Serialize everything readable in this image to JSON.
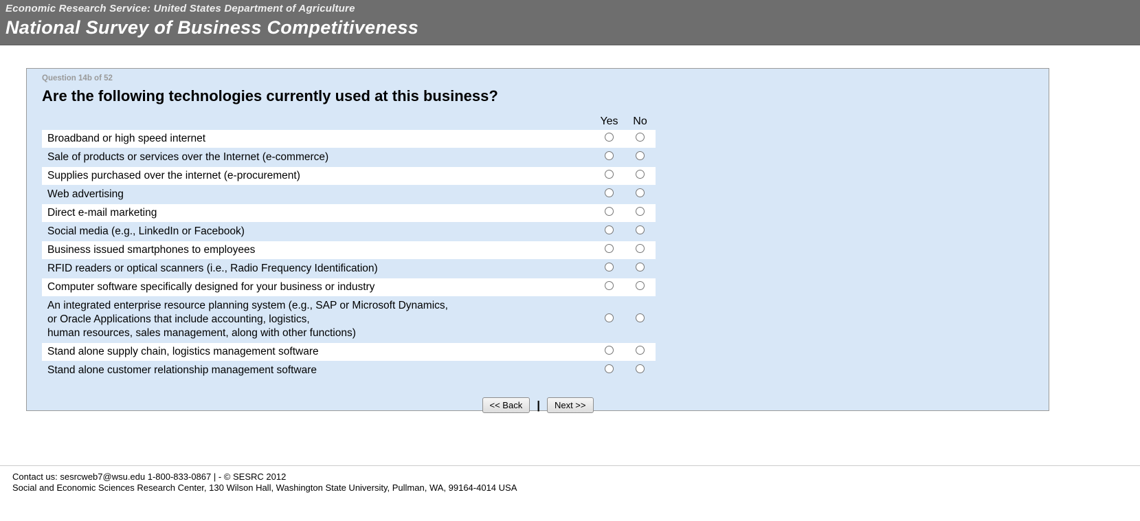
{
  "header": {
    "agency_line": "Economic Research Service: United States Department of Agriculture",
    "survey_title": "National Survey of Business Competitiveness"
  },
  "question": {
    "progress": "Question 14b of 52",
    "heading": "Are the following technologies currently used at this business?",
    "columns": {
      "yes": "Yes",
      "no": "No"
    },
    "rows": [
      {
        "label": "Broadband or high speed internet"
      },
      {
        "label": "Sale of products or services over the Internet (e-commerce)"
      },
      {
        "label": "Supplies purchased over the internet (e-procurement)"
      },
      {
        "label": "Web advertising"
      },
      {
        "label": "Direct e-mail marketing"
      },
      {
        "label": "Social media (e.g., LinkedIn or Facebook)"
      },
      {
        "label": "Business issued smartphones to employees"
      },
      {
        "label": "RFID readers or optical scanners (i.e., Radio Frequency Identification)"
      },
      {
        "label": "Computer software specifically designed for your business or industry"
      },
      {
        "label": "An integrated enterprise resource planning system (e.g., SAP or Microsoft Dynamics,\nor Oracle Applications that include accounting, logistics,\nhuman resources, sales management, along with other functions)"
      },
      {
        "label": "Stand alone supply chain, logistics management software"
      },
      {
        "label": "Stand alone customer relationship management software"
      }
    ]
  },
  "buttons": {
    "back": "<< Back",
    "separator": "|",
    "next": "Next >>"
  },
  "footer": {
    "line1": "Contact us: sesrcweb7@wsu.edu 1-800-833-0867 | - © SESRC 2012",
    "line2": "Social and Economic Sciences Research Center, 130 Wilson Hall, Washington State University, Pullman, WA, 99164-4014 USA"
  },
  "colors": {
    "header_bg": "#6e6e6e",
    "panel_bg": "#d8e7f7",
    "row_white": "#ffffff",
    "panel_border": "#9a9a9a"
  }
}
